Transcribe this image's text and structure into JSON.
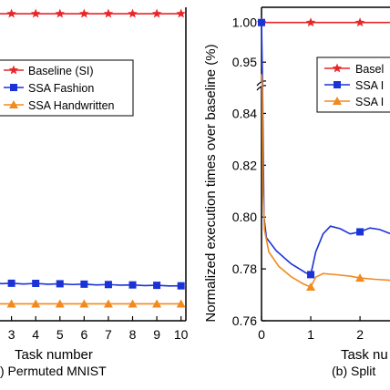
{
  "chart_data": [
    {
      "type": "line",
      "title": "",
      "caption": ") Permuted MNIST",
      "xlabel": "Task number",
      "ylabel": "",
      "x_ticks": [
        "3",
        "4",
        "5",
        "6",
        "7",
        "8",
        "9",
        "10"
      ],
      "xlim": [
        2.3,
        10.2
      ],
      "ylim": [
        0.76,
        1.005
      ],
      "legend": {
        "placement": "top-left",
        "entries": [
          "Baseline (SI)",
          "SSA Fashion",
          "SSA Handwritten"
        ]
      },
      "series": [
        {
          "name": "Baseline (SI)",
          "color": "#e8262a",
          "marker": "star",
          "points": [
            [
              2.3,
              1.0
            ],
            [
              3,
              1.0
            ],
            [
              4,
              1.0
            ],
            [
              5,
              1.0
            ],
            [
              6,
              1.0
            ],
            [
              7,
              1.0
            ],
            [
              8,
              1.0
            ],
            [
              9,
              1.0
            ],
            [
              10,
              1.0
            ]
          ],
          "marker_x": [
            3,
            4,
            5,
            6,
            7,
            8,
            9,
            10
          ]
        },
        {
          "name": "SSA Fashion",
          "color": "#1a32d6",
          "marker": "square",
          "points": [
            [
              2.3,
              0.7897
            ],
            [
              2.6,
              0.789
            ],
            [
              3,
              0.7893
            ],
            [
              3.5,
              0.7887
            ],
            [
              4,
              0.7892
            ],
            [
              4.5,
              0.7885
            ],
            [
              5,
              0.7889
            ],
            [
              5.5,
              0.7883
            ],
            [
              6,
              0.7886
            ],
            [
              6.5,
              0.788
            ],
            [
              7,
              0.7883
            ],
            [
              7.5,
              0.7878
            ],
            [
              8,
              0.788
            ],
            [
              8.5,
              0.7875
            ],
            [
              9,
              0.7877
            ],
            [
              9.5,
              0.7872
            ],
            [
              10,
              0.7873
            ]
          ],
          "marker_x": [
            3,
            4,
            5,
            6,
            7,
            8,
            9,
            10
          ]
        },
        {
          "name": "SSA Handwritten",
          "color": "#f28a1e",
          "marker": "triangle",
          "points": [
            [
              2.3,
              0.7732
            ],
            [
              3,
              0.7732
            ],
            [
              4,
              0.7732
            ],
            [
              5,
              0.7732
            ],
            [
              6,
              0.7732
            ],
            [
              7,
              0.7732
            ],
            [
              8,
              0.7732
            ],
            [
              9,
              0.7732
            ],
            [
              10,
              0.7732
            ]
          ],
          "marker_x": [
            3,
            4,
            5,
            6,
            7,
            8,
            9,
            10
          ]
        }
      ]
    },
    {
      "type": "line",
      "title": "",
      "caption": "(b) Split",
      "xlabel": "Task nu",
      "ylabel": "Normalized execution times over baseline (%)",
      "x_ticks": [
        "0",
        "1",
        "2"
      ],
      "y_ticks": [
        "0.76",
        "0.78",
        "0.80",
        "0.82",
        "0.84",
        "0.95",
        "1.00"
      ],
      "xlim": [
        0,
        2.72
      ],
      "ylim_lower": [
        0.76,
        0.85
      ],
      "ylim_upper": [
        0.925,
        1.01
      ],
      "axis_break": true,
      "legend": {
        "placement": "top-right",
        "entries": [
          "Basel",
          "SSA I",
          "SSA I"
        ]
      },
      "series": [
        {
          "name": "Basel",
          "color": "#e8262a",
          "marker": "star",
          "points": [
            [
              0,
              1.0
            ],
            [
              1,
              1.0
            ],
            [
              2,
              1.0
            ],
            [
              2.72,
              1.0
            ]
          ],
          "marker_x": [
            0,
            1,
            2
          ]
        },
        {
          "name": "SSA I",
          "color": "#1a32d6",
          "marker": "square",
          "points": [
            [
              0,
              1.0
            ],
            [
              0.02,
              0.9
            ],
            [
              0.05,
              0.8
            ],
            [
              0.1,
              0.792
            ],
            [
              0.3,
              0.787
            ],
            [
              0.6,
              0.782
            ],
            [
              0.9,
              0.7785
            ],
            [
              1,
              0.7778
            ],
            [
              1.1,
              0.7865
            ],
            [
              1.25,
              0.7935
            ],
            [
              1.4,
              0.7965
            ],
            [
              1.6,
              0.7955
            ],
            [
              1.8,
              0.7935
            ],
            [
              2,
              0.7943
            ],
            [
              2.2,
              0.7958
            ],
            [
              2.4,
              0.7952
            ],
            [
              2.6,
              0.7937
            ],
            [
              2.72,
              0.7932
            ]
          ],
          "marker_x": [
            0,
            1,
            2
          ]
        },
        {
          "name": "SSA I",
          "color": "#f28a1e",
          "marker": "triangle",
          "points": [
            [
              0,
              0.935
            ],
            [
              0.015,
              0.85
            ],
            [
              0.03,
              0.81
            ],
            [
              0.06,
              0.795
            ],
            [
              0.15,
              0.7865
            ],
            [
              0.35,
              0.781
            ],
            [
              0.6,
              0.777
            ],
            [
              0.85,
              0.7742
            ],
            [
              1,
              0.773
            ],
            [
              1.1,
              0.7768
            ],
            [
              1.25,
              0.7782
            ],
            [
              1.5,
              0.7778
            ],
            [
              1.8,
              0.7772
            ],
            [
              2,
              0.7765
            ],
            [
              2.3,
              0.776
            ],
            [
              2.72,
              0.7755
            ]
          ],
          "marker_x": [
            1,
            2
          ]
        }
      ]
    }
  ]
}
